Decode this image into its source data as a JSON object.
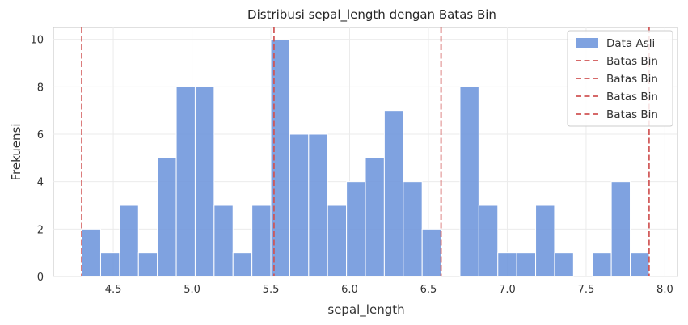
{
  "chart_data": {
    "type": "bar",
    "title": "Distribusi sepal_length dengan Batas Bin",
    "xlabel": "sepal_length",
    "ylabel": "Frekuensi",
    "xlim": [
      4.12,
      8.08
    ],
    "ylim": [
      0,
      10.5
    ],
    "xticks": [
      4.5,
      5.0,
      5.5,
      6.0,
      6.5,
      7.0,
      7.5,
      8.0
    ],
    "xtick_labels": [
      "4.5",
      "5.0",
      "5.5",
      "6.0",
      "6.5",
      "7.0",
      "7.5",
      "8.0"
    ],
    "yticks": [
      0,
      2,
      4,
      6,
      8,
      10
    ],
    "ytick_labels": [
      "0",
      "2",
      "4",
      "6",
      "8",
      "10"
    ],
    "grid": true,
    "legend_position": "top-right",
    "bin_range": [
      4.3,
      7.9
    ],
    "bin_count": 30,
    "series": [
      {
        "name": "Data Asli",
        "kind": "histogram",
        "color": "#6d95dc",
        "values": [
          2,
          1,
          3,
          1,
          5,
          8,
          8,
          3,
          1,
          3,
          10,
          6,
          6,
          3,
          4,
          5,
          7,
          4,
          2,
          0,
          8,
          3,
          1,
          1,
          3,
          1,
          0,
          1,
          4,
          1
        ]
      },
      {
        "name": "Batas Bin",
        "kind": "vline",
        "color": "#d05454",
        "x": 4.3
      },
      {
        "name": "Batas Bin",
        "kind": "vline",
        "color": "#d05454",
        "x": 5.52
      },
      {
        "name": "Batas Bin",
        "kind": "vline",
        "color": "#d05454",
        "x": 6.58
      },
      {
        "name": "Batas Bin",
        "kind": "vline",
        "color": "#d05454",
        "x": 7.9
      }
    ]
  }
}
